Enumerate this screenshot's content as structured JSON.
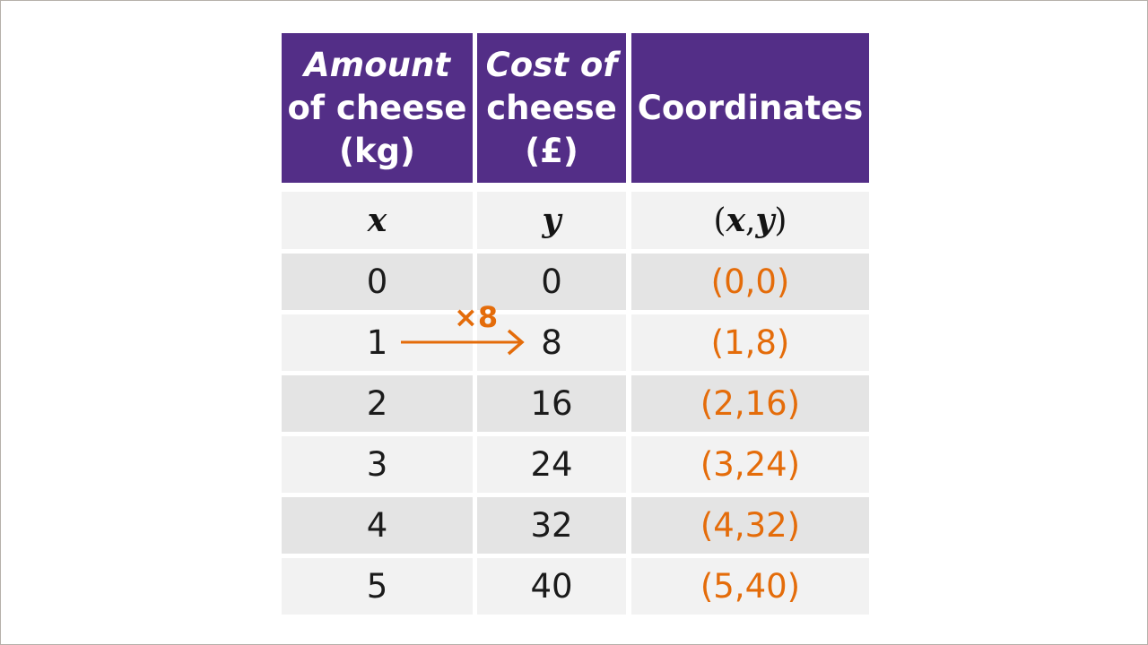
{
  "headers": {
    "col1": [
      "Amount",
      "of cheese",
      "(kg)"
    ],
    "col2": [
      "Cost of",
      "cheese",
      "(£)"
    ],
    "col3": "Coordinates"
  },
  "subheaders": {
    "x": "x",
    "y": "y",
    "xy_open": "(",
    "xy_x": "x",
    "xy_comma": ",",
    "xy_y": "y",
    "xy_close": ")"
  },
  "rows": [
    {
      "x": "0",
      "y": "0",
      "coord": "(0,0)"
    },
    {
      "x": "1",
      "y": "8",
      "coord": "(1,8)"
    },
    {
      "x": "2",
      "y": "16",
      "coord": "(2,16)"
    },
    {
      "x": "3",
      "y": "24",
      "coord": "(3,24)"
    },
    {
      "x": "4",
      "y": "32",
      "coord": "(4,32)"
    },
    {
      "x": "5",
      "y": "40",
      "coord": "(5,40)"
    }
  ],
  "annotation": {
    "label": "×8",
    "icon": "arrow-right-icon",
    "color": "#e46c0a"
  },
  "colors": {
    "header_bg": "#532e87",
    "header_text": "#ffffff",
    "coord_text": "#e46c0a",
    "row_dark": "#e4e4e4",
    "row_light": "#f2f2f2"
  }
}
